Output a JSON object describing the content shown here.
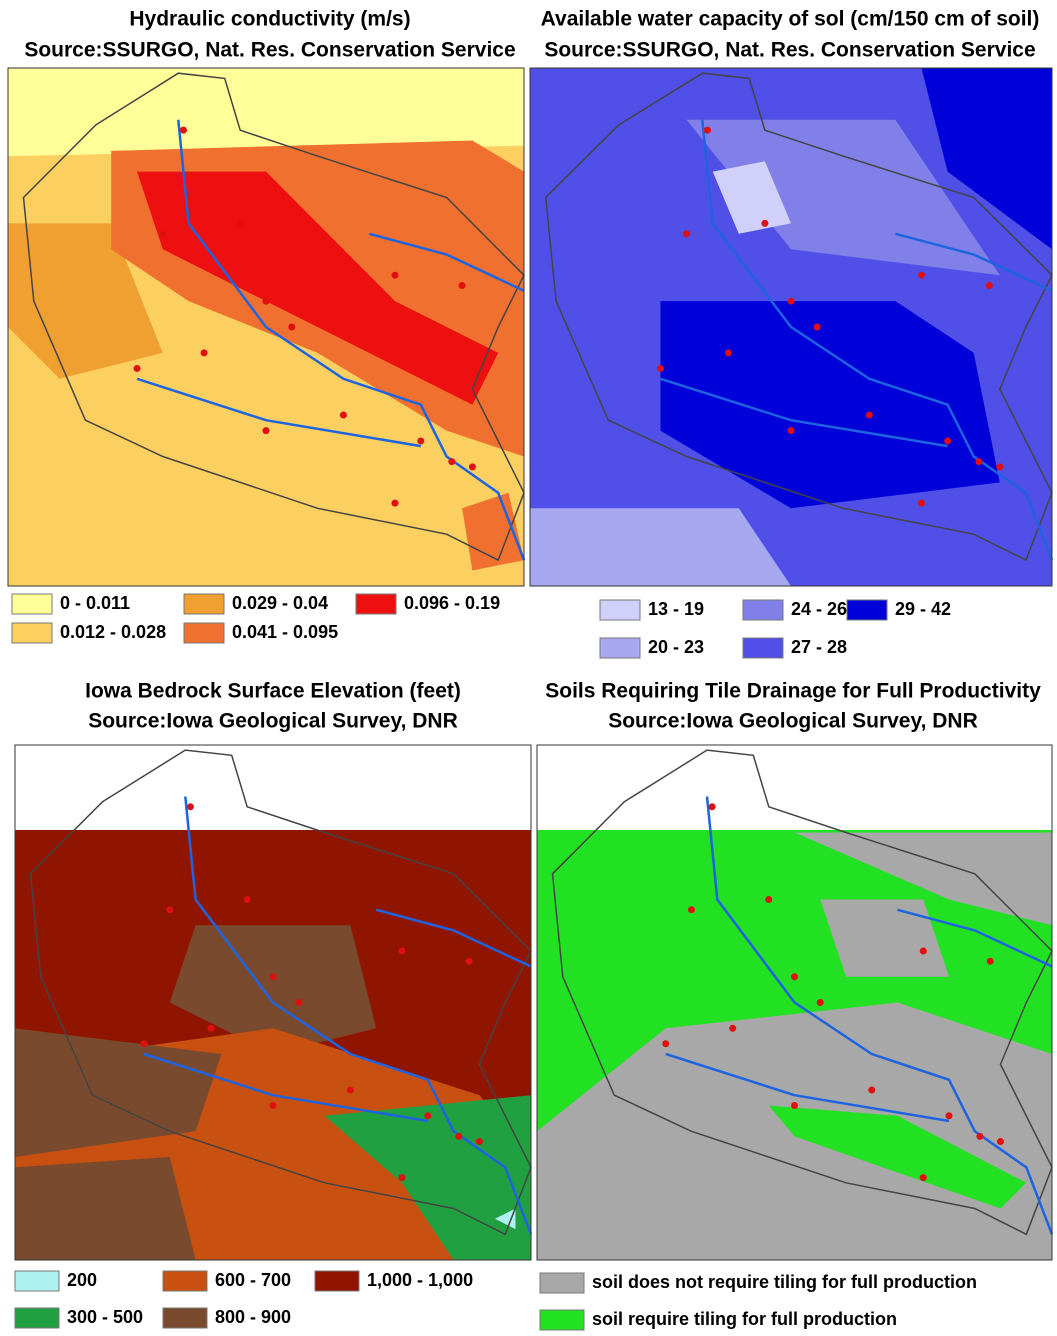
{
  "panels": [
    {
      "title": [
        "Hydraulic conductivity (m/s)",
        "Source:SSURGO, Nat. Res. Conservation Service"
      ],
      "legend": [
        {
          "label": "0 - 0.011",
          "color": "#ffff99"
        },
        {
          "label": "0.012 - 0.028",
          "color": "#fbd060"
        },
        {
          "label": "0.029 - 0.04",
          "color": "#f0a030"
        },
        {
          "label": "0.041 - 0.095",
          "color": "#f07030"
        },
        {
          "label": "0.096 - 0.19",
          "color": "#ee1010"
        }
      ]
    },
    {
      "title": [
        "Available water capacity of sol (cm/150 cm of soil)",
        "Source:SSURGO, Nat. Res. Conservation Service"
      ],
      "legend": [
        {
          "label": "13 - 19",
          "color": "#d0d0fa"
        },
        {
          "label": "20 - 23",
          "color": "#a8a8f0"
        },
        {
          "label": "24 - 26",
          "color": "#8080e8"
        },
        {
          "label": "27 - 28",
          "color": "#5050e8"
        },
        {
          "label": "29 - 42",
          "color": "#0000d8"
        }
      ]
    },
    {
      "title": [
        "Iowa Bedrock Surface Elevation (feet)",
        "Source:Iowa Geological Survey, DNR"
      ],
      "legend": [
        {
          "label": "200",
          "color": "#aff0f0"
        },
        {
          "label": "300 - 500",
          "color": "#20a040"
        },
        {
          "label": "600 - 700",
          "color": "#c85010"
        },
        {
          "label": "800 - 900",
          "color": "#7a4a2e"
        },
        {
          "label": "1,000 - 1,000",
          "color": "#901500"
        }
      ]
    },
    {
      "title": [
        "Soils Requiring Tile Drainage for Full Productivity",
        "Source:Iowa Geological Survey, DNR"
      ],
      "legend": [
        {
          "label": "soil does not require tiling for full production",
          "color": "#a8a8a8"
        },
        {
          "label": "soil require tiling for full production",
          "color": "#22e022"
        }
      ]
    }
  ]
}
